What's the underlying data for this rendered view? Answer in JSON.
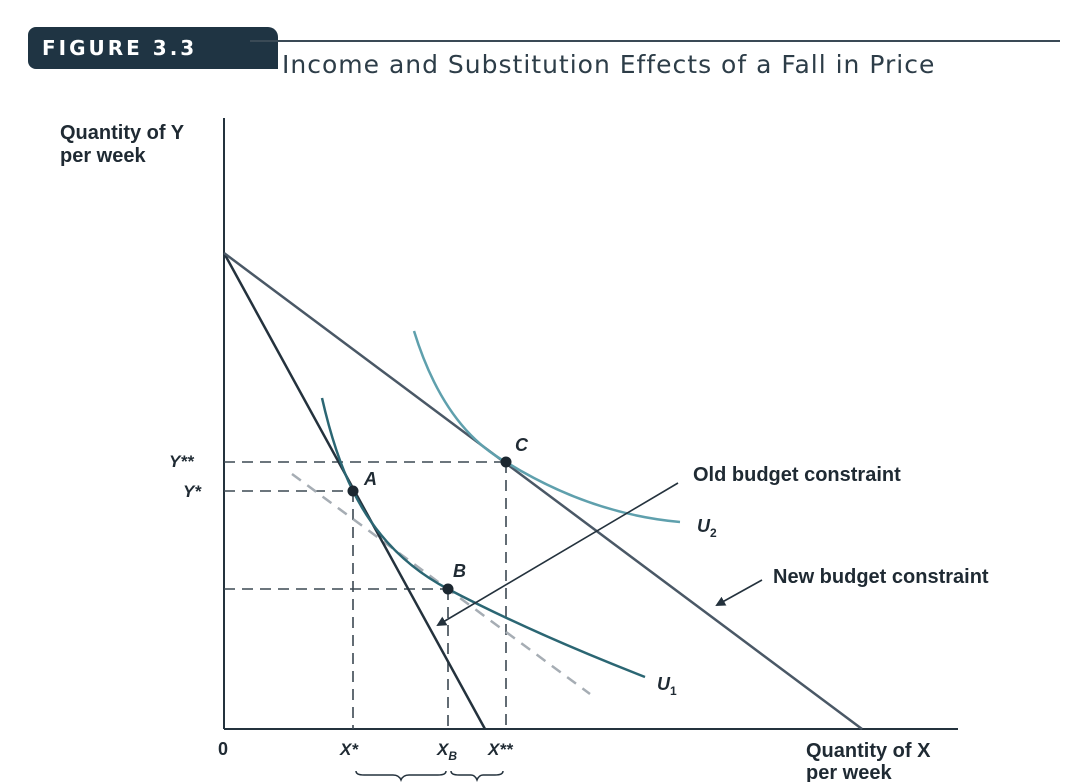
{
  "figure": {
    "label": "FIGURE 3.3",
    "title": "Income and Substitution Effects of a Fall in Price"
  },
  "axes": {
    "y_label_line1": "Quantity of Y",
    "y_label_line2": "per week",
    "x_label_line1": "Quantity of X",
    "x_label_line2": "per week",
    "origin": "0"
  },
  "ticks": {
    "y_double_star": "Y**",
    "y_star": "Y*",
    "x_star": "X*",
    "x_b_main": "X",
    "x_b_sub": "B",
    "x_double_star": "X**"
  },
  "points": {
    "a": "A",
    "b": "B",
    "c": "C"
  },
  "curves": {
    "u1_main": "U",
    "u1_sub": "1",
    "u2_main": "U",
    "u2_sub": "2"
  },
  "annotations": {
    "old_budget": "Old budget constraint",
    "new_budget": "New budget constraint"
  },
  "colors": {
    "dark_line": "#24323d",
    "budget_new": "#4a5866",
    "u1": "#2b6673",
    "u2": "#5fa0ad",
    "dashed_tangent": "#a6adb4",
    "guide": "#3c4852",
    "header_bg": "#1f3443"
  }
}
